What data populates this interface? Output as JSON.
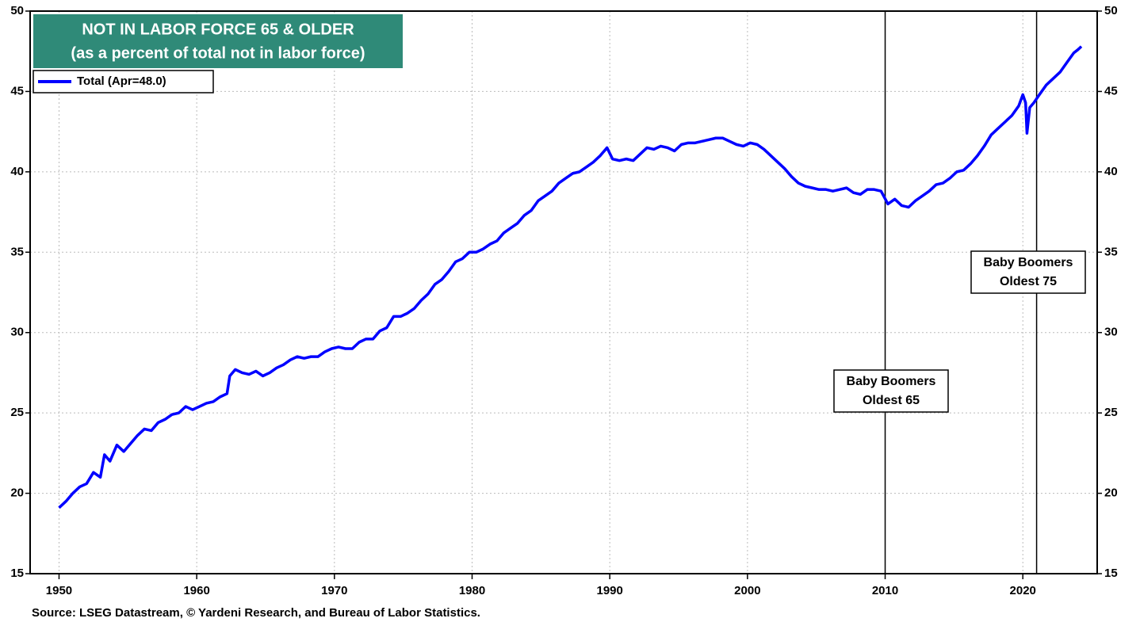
{
  "chart_data": {
    "type": "line",
    "title": "NOT IN LABOR FORCE 65 & OLDER",
    "subtitle": "(as a percent of total not in labor force)",
    "source": "Source: LSEG Datastream, © Yardeni Research, and Bureau of Labor Statistics.",
    "xlim": [
      1947.9,
      2025.4
    ],
    "xticks": [
      1950,
      1960,
      1970,
      1980,
      1990,
      2000,
      2010,
      2020
    ],
    "ylim": [
      15,
      50
    ],
    "yticks": [
      15,
      20,
      25,
      30,
      35,
      40,
      45,
      50
    ],
    "grid": true,
    "series": [
      {
        "name": "Total  (Apr=48.0)",
        "color": "#0000ff",
        "x": [
          1950.0,
          1950.5,
          1951.0,
          1951.5,
          1952.0,
          1952.5,
          1953.0,
          1953.3,
          1953.7,
          1954.2,
          1954.7,
          1955.2,
          1955.7,
          1956.2,
          1956.7,
          1957.2,
          1957.7,
          1958.2,
          1958.7,
          1959.2,
          1959.7,
          1960.2,
          1960.7,
          1961.2,
          1961.7,
          1962.2,
          1962.4,
          1962.8,
          1963.3,
          1963.8,
          1964.3,
          1964.8,
          1965.3,
          1965.8,
          1966.3,
          1966.8,
          1967.3,
          1967.8,
          1968.3,
          1968.8,
          1969.3,
          1969.8,
          1970.3,
          1970.8,
          1971.3,
          1971.8,
          1972.3,
          1972.8,
          1973.3,
          1973.8,
          1974.3,
          1974.8,
          1975.3,
          1975.8,
          1976.3,
          1976.8,
          1977.3,
          1977.8,
          1978.3,
          1978.8,
          1979.3,
          1979.8,
          1980.3,
          1980.8,
          1981.3,
          1981.8,
          1982.3,
          1982.8,
          1983.3,
          1983.8,
          1984.3,
          1984.8,
          1985.3,
          1985.8,
          1986.3,
          1986.8,
          1987.3,
          1987.8,
          1988.3,
          1988.8,
          1989.3,
          1989.8,
          1990.2,
          1990.7,
          1991.2,
          1991.7,
          1992.2,
          1992.7,
          1993.2,
          1993.7,
          1994.2,
          1994.7,
          1995.2,
          1995.7,
          1996.2,
          1996.7,
          1997.2,
          1997.7,
          1998.2,
          1998.7,
          1999.2,
          1999.7,
          2000.2,
          2000.7,
          2001.2,
          2001.7,
          2002.2,
          2002.7,
          2003.2,
          2003.7,
          2004.2,
          2004.7,
          2005.2,
          2005.7,
          2006.2,
          2006.7,
          2007.2,
          2007.7,
          2008.2,
          2008.7,
          2009.2,
          2009.7,
          2010.2,
          2010.7,
          2011.2,
          2011.7,
          2012.2,
          2012.7,
          2013.2,
          2013.7,
          2014.2,
          2014.7,
          2015.2,
          2015.7,
          2016.2,
          2016.7,
          2017.2,
          2017.7,
          2018.2,
          2018.7,
          2019.2,
          2019.7,
          2020.0,
          2020.2,
          2020.3,
          2020.5,
          2020.8,
          2021.2,
          2021.7,
          2022.2,
          2022.7,
          2023.2,
          2023.7,
          2024.0,
          2024.25
        ],
        "values": [
          19.1,
          19.5,
          20.0,
          20.4,
          20.6,
          21.3,
          21.0,
          22.4,
          22.0,
          23.0,
          22.6,
          23.1,
          23.6,
          24.0,
          23.9,
          24.4,
          24.6,
          24.9,
          25.0,
          25.4,
          25.2,
          25.4,
          25.6,
          25.7,
          26.0,
          26.2,
          27.3,
          27.7,
          27.5,
          27.4,
          27.6,
          27.3,
          27.5,
          27.8,
          28.0,
          28.3,
          28.5,
          28.4,
          28.5,
          28.5,
          28.8,
          29.0,
          29.1,
          29.0,
          29.0,
          29.4,
          29.6,
          29.6,
          30.1,
          30.3,
          31.0,
          31.0,
          31.2,
          31.5,
          32.0,
          32.4,
          33.0,
          33.3,
          33.8,
          34.4,
          34.6,
          35.0,
          35.0,
          35.2,
          35.5,
          35.7,
          36.2,
          36.5,
          36.8,
          37.3,
          37.6,
          38.2,
          38.5,
          38.8,
          39.3,
          39.6,
          39.9,
          40.0,
          40.3,
          40.6,
          41.0,
          41.5,
          40.8,
          40.7,
          40.8,
          40.7,
          41.1,
          41.5,
          41.4,
          41.6,
          41.5,
          41.3,
          41.7,
          41.8,
          41.8,
          41.9,
          42.0,
          42.1,
          42.1,
          41.9,
          41.7,
          41.6,
          41.8,
          41.7,
          41.4,
          41.0,
          40.6,
          40.2,
          39.7,
          39.3,
          39.1,
          39.0,
          38.9,
          38.9,
          38.8,
          38.9,
          39.0,
          38.7,
          38.6,
          38.9,
          38.9,
          38.8,
          38.0,
          38.3,
          37.9,
          37.8,
          38.2,
          38.5,
          38.8,
          39.2,
          39.3,
          39.6,
          40.0,
          40.1,
          40.5,
          41.0,
          41.6,
          42.3,
          42.7,
          43.1,
          43.5,
          44.1,
          44.8,
          44.3,
          42.4,
          44.0,
          44.3,
          44.8,
          45.4,
          45.8,
          46.2,
          46.8,
          47.4,
          47.6,
          47.8
        ]
      }
    ],
    "annotations": [
      {
        "lines": [
          "Baby Boomers",
          "Oldest 65"
        ],
        "x": 2010
      },
      {
        "lines": [
          "Baby Boomers",
          "Oldest 75"
        ],
        "x": 2021
      }
    ]
  }
}
